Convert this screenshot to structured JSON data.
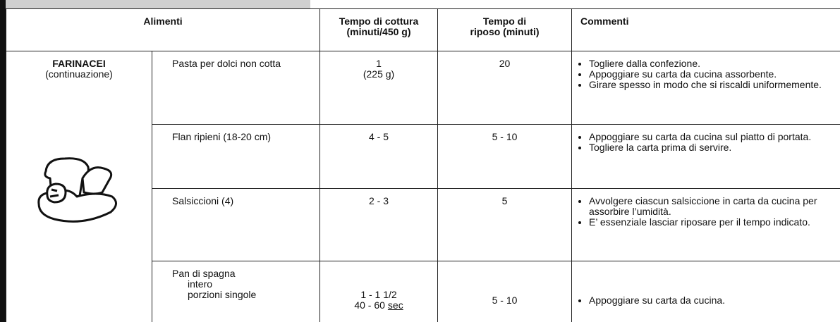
{
  "table": {
    "header": {
      "food": "Alimenti",
      "cooking": [
        "Tempo di cottura",
        "(minuti/450 g)"
      ],
      "rest": [
        "Tempo di",
        "riposo (minuti)"
      ],
      "comments": "Commenti"
    },
    "category": {
      "title": "FARINACEI",
      "subtitle": "(continuazione)"
    },
    "rows": [
      {
        "food": [
          "Pasta per dolci non cotta"
        ],
        "cooking": [
          "1",
          "(225 g)"
        ],
        "rest": "20",
        "comments": [
          "Togliere dalla confezione.",
          "Appoggiare su carta da cucina assorbente.",
          "Girare spesso in modo che si riscaldi uniformemente."
        ]
      },
      {
        "food": [
          "Flan ripieni (18-20 cm)"
        ],
        "cooking": [
          "4 - 5"
        ],
        "rest": "5 - 10",
        "comments": [
          "Appoggiare su carta da cucina sul piatto di portata.",
          "Togliere la carta prima di servire."
        ]
      },
      {
        "food": [
          "Salsiccioni (4)"
        ],
        "cooking": [
          "2 - 3"
        ],
        "rest": "5",
        "comments": [
          "Avvolgere ciascun salsiccione in carta da cucina per assorbire l’umidità.",
          "E’ essenziale lasciar riposare per il tempo indicato."
        ]
      },
      {
        "food": [
          "Pan di spagna",
          "intero",
          "porzioni singole"
        ],
        "cooking": [
          "1 - 1 1/2",
          "40 - 60"
        ],
        "cooking_unit": "sec",
        "rest": "5 - 10",
        "comments": [
          "Appoggiare su carta da cucina."
        ]
      }
    ]
  }
}
